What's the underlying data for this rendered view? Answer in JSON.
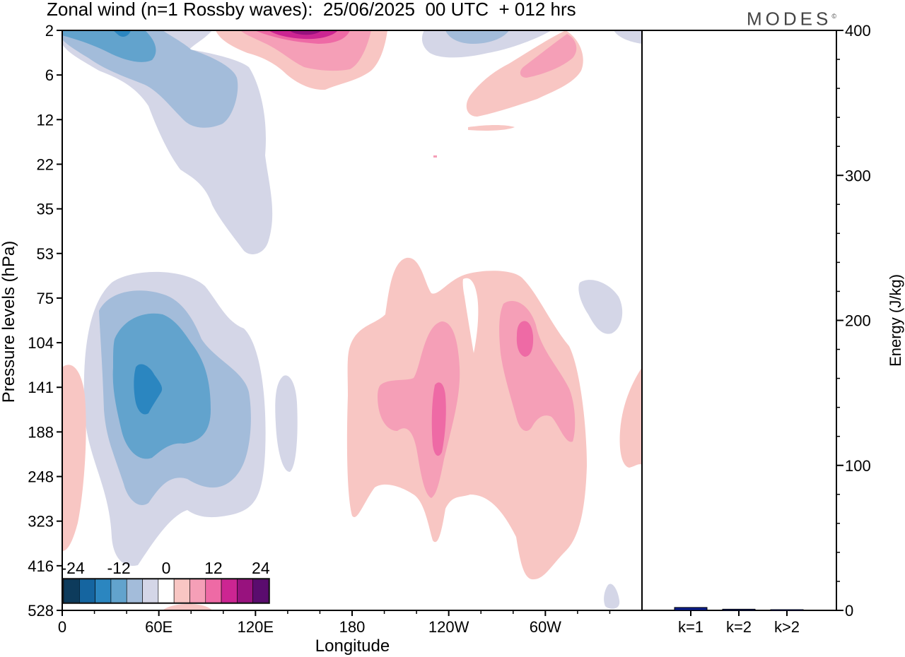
{
  "header": {
    "title": "Zonal wind (n=1 Rossby waves):  25/06/2025  00 UTC  + 012 hrs",
    "brand": "MODES",
    "brand_mark": "©"
  },
  "colors": {
    "neg": [
      "#0d3b5c",
      "#1565a0",
      "#2b86c0",
      "#62a3cd",
      "#a3bcda",
      "#d4d6e7"
    ],
    "zero": "#ffffff",
    "pos": [
      "#f8c6c3",
      "#f59fb7",
      "#ee6aa5",
      "#cc2592",
      "#98127e",
      "#5a0c6e"
    ],
    "bar": "#0a1c8c"
  },
  "chart_data": [
    {
      "type": "heatmap",
      "title": "Zonal wind (n=1 Rossby waves):  25/06/2025  00 UTC  + 012 hrs",
      "xlabel": "Longitude",
      "ylabel": "Pressure levels (hPa)",
      "x_ticks": [
        "0",
        "60E",
        "120E",
        "180",
        "120W",
        "60W"
      ],
      "y_ticks": [
        "2",
        "6",
        "12",
        "22",
        "35",
        "53",
        "75",
        "104",
        "141",
        "188",
        "248",
        "323",
        "416",
        "528"
      ],
      "colorbar_labels": [
        "-24",
        "-12",
        "0",
        "12",
        "24"
      ],
      "colorbar_levels": [
        -30,
        -24,
        -18,
        -12,
        -6,
        -3,
        3,
        6,
        12,
        18,
        24,
        30
      ],
      "features": [
        {
          "center_lon": 50,
          "center_level": "141",
          "value": -22
        },
        {
          "center_lon": 40,
          "center_level": "2",
          "value": -18
        },
        {
          "center_lon": 150,
          "center_level": "2",
          "value": 24
        },
        {
          "center_lon": 245,
          "center_level": "188",
          "value": 15
        },
        {
          "center_lon": 297,
          "center_level": "104",
          "value": 16
        },
        {
          "center_lon": 315,
          "center_level": "6",
          "value": 10
        }
      ]
    },
    {
      "type": "bar",
      "categories": [
        "k=1",
        "k=2",
        "k>2"
      ],
      "values": [
        2,
        0.8,
        0.5
      ],
      "ylabel": "Energy (J/kg)",
      "ylim": [
        0,
        400
      ],
      "y_ticks": [
        "0",
        "100",
        "200",
        "300",
        "400"
      ]
    }
  ]
}
